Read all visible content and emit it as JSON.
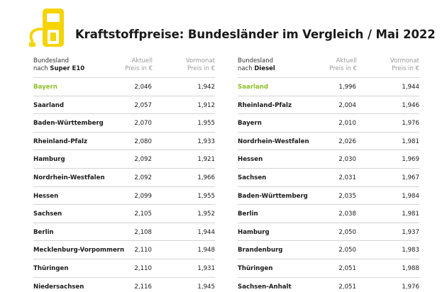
{
  "title": "Kraftstoffpreise: Bundesländer im Vergleich / Mai 2022",
  "colors": {
    "accent": "#8cbf26",
    "icon_yellow": "#f5d400",
    "rule": "#d5d5d5"
  },
  "icon": "fuel-pump-icon",
  "left": {
    "header": {
      "name_line1": "Bundesland",
      "name_line2_prefix": "nach",
      "name_line2_bold": "Super E10",
      "col1_line1": "Aktuell",
      "col1_line2": "Preis in €",
      "col2_line1": "Vormonat",
      "col2_line2": "Preis in €"
    },
    "rows": [
      {
        "name": "Bayern",
        "aktuell": "2,046",
        "vormonat": "1,942"
      },
      {
        "name": "Saarland",
        "aktuell": "2,057",
        "vormonat": "1,912"
      },
      {
        "name": "Baden-Württemberg",
        "aktuell": "2,070",
        "vormonat": "1,955"
      },
      {
        "name": "Rheinland-Pfalz",
        "aktuell": "2,080",
        "vormonat": "1,933"
      },
      {
        "name": "Hamburg",
        "aktuell": "2,092",
        "vormonat": "1,921"
      },
      {
        "name": "Nordrhein-Westfalen",
        "aktuell": "2,092",
        "vormonat": "1,966"
      },
      {
        "name": "Hessen",
        "aktuell": "2,099",
        "vormonat": "1,955"
      },
      {
        "name": "Sachsen",
        "aktuell": "2,105",
        "vormonat": "1,952"
      },
      {
        "name": "Berlin",
        "aktuell": "2,108",
        "vormonat": "1,944"
      },
      {
        "name": "Mecklenburg-Vorpommern",
        "aktuell": "2,110",
        "vormonat": "1,948"
      },
      {
        "name": "Thüringen",
        "aktuell": "2,110",
        "vormonat": "1,931"
      },
      {
        "name": "Niedersachsen",
        "aktuell": "2,116",
        "vormonat": "1,945"
      }
    ]
  },
  "right": {
    "header": {
      "name_line1": "Bundesland",
      "name_line2_prefix": "nach",
      "name_line2_bold": "Diesel",
      "col1_line1": "Aktuell",
      "col1_line2": "Preis in €",
      "col2_line1": "Vormonat",
      "col2_line2": "Preis in €"
    },
    "rows": [
      {
        "name": "Saarland",
        "aktuell": "1,996",
        "vormonat": "1,944"
      },
      {
        "name": "Rheinland-Pfalz",
        "aktuell": "2,004",
        "vormonat": "1,946"
      },
      {
        "name": "Bayern",
        "aktuell": "2,010",
        "vormonat": "1,976"
      },
      {
        "name": "Nordrhein-Westfalen",
        "aktuell": "2,026",
        "vormonat": "1,981"
      },
      {
        "name": "Hessen",
        "aktuell": "2,030",
        "vormonat": "1,969"
      },
      {
        "name": "Sachsen",
        "aktuell": "2,031",
        "vormonat": "1,967"
      },
      {
        "name": "Baden-Württemberg",
        "aktuell": "2,035",
        "vormonat": "1,984"
      },
      {
        "name": "Berlin",
        "aktuell": "2,038",
        "vormonat": "1,981"
      },
      {
        "name": "Hamburg",
        "aktuell": "2,050",
        "vormonat": "1,937"
      },
      {
        "name": "Brandenburg",
        "aktuell": "2,050",
        "vormonat": "1,983"
      },
      {
        "name": "Thüringen",
        "aktuell": "2,051",
        "vormonat": "1,988"
      },
      {
        "name": "Sachsen-Anhalt",
        "aktuell": "2,051",
        "vormonat": "1,976"
      }
    ]
  }
}
